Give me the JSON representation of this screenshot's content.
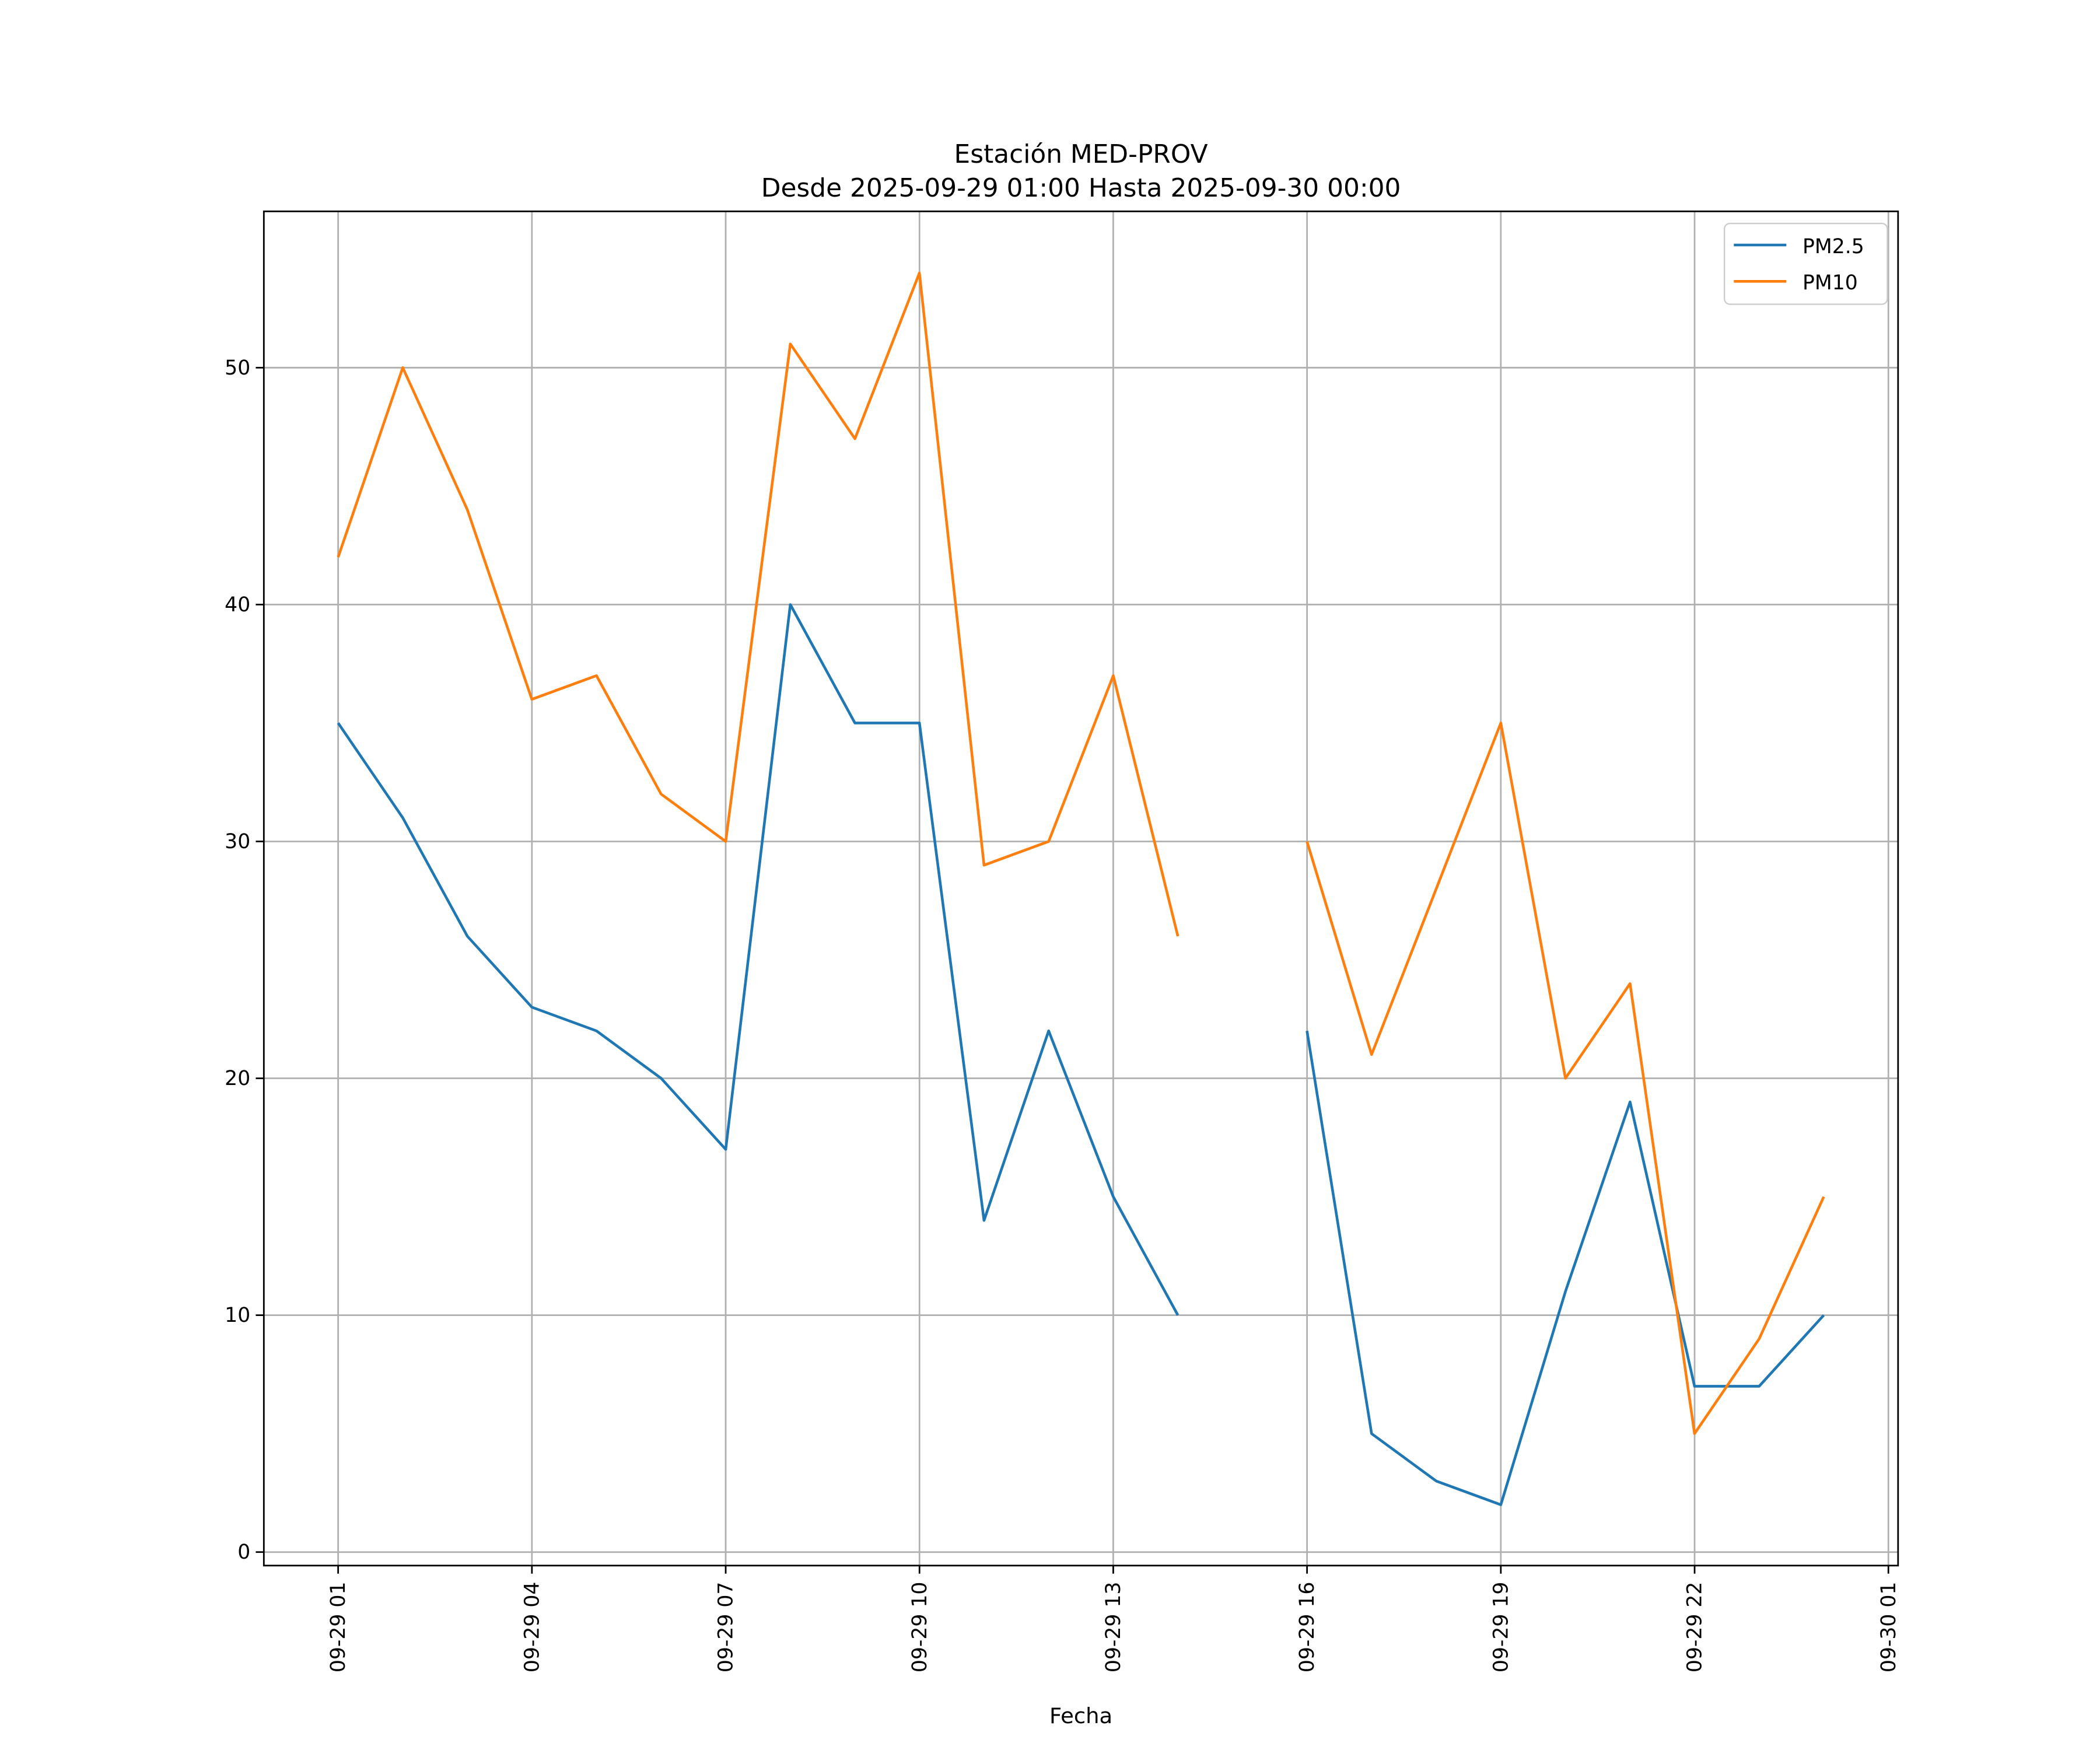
{
  "chart_data": {
    "type": "line",
    "title": "Estación MED-PROV",
    "subtitle": "Desde 2025-09-29 01:00 Hasta 2025-09-30 00:00",
    "xlabel": "Fecha",
    "ylabel": "",
    "x_unit": "hour offset from 2025-09-29 00:00",
    "x": [
      1,
      2,
      3,
      4,
      5,
      6,
      7,
      8,
      9,
      10,
      11,
      12,
      13,
      14,
      15,
      16,
      17,
      18,
      19,
      20,
      21,
      22,
      23,
      24
    ],
    "series": [
      {
        "name": "PM2.5",
        "color": "#1f77b4",
        "values": [
          35,
          31,
          26,
          23,
          22,
          20,
          17,
          40,
          35,
          35,
          14,
          22,
          15,
          10,
          null,
          22,
          5,
          3,
          2,
          11,
          19,
          7,
          7,
          10
        ]
      },
      {
        "name": "PM10",
        "color": "#ff7f0e",
        "values": [
          42,
          50,
          44,
          36,
          37,
          32,
          30,
          51,
          47,
          54,
          29,
          30,
          37,
          26,
          null,
          30,
          21,
          28,
          35,
          20,
          24,
          5,
          9,
          15
        ]
      }
    ],
    "xticks": [
      1,
      4,
      7,
      10,
      13,
      16,
      19,
      22,
      25
    ],
    "xtick_labels": [
      "09-29 01",
      "09-29 04",
      "09-29 07",
      "09-29 10",
      "09-29 13",
      "09-29 16",
      "09-29 19",
      "09-29 22",
      "09-30 01"
    ],
    "yticks": [
      0,
      10,
      20,
      30,
      40,
      50
    ],
    "ytick_labels": [
      "0",
      "10",
      "20",
      "30",
      "40",
      "50"
    ],
    "xlim": [
      -0.15,
      25.15
    ],
    "ylim": [
      -0.57,
      56.6
    ],
    "grid": true,
    "legend": "top-right"
  }
}
